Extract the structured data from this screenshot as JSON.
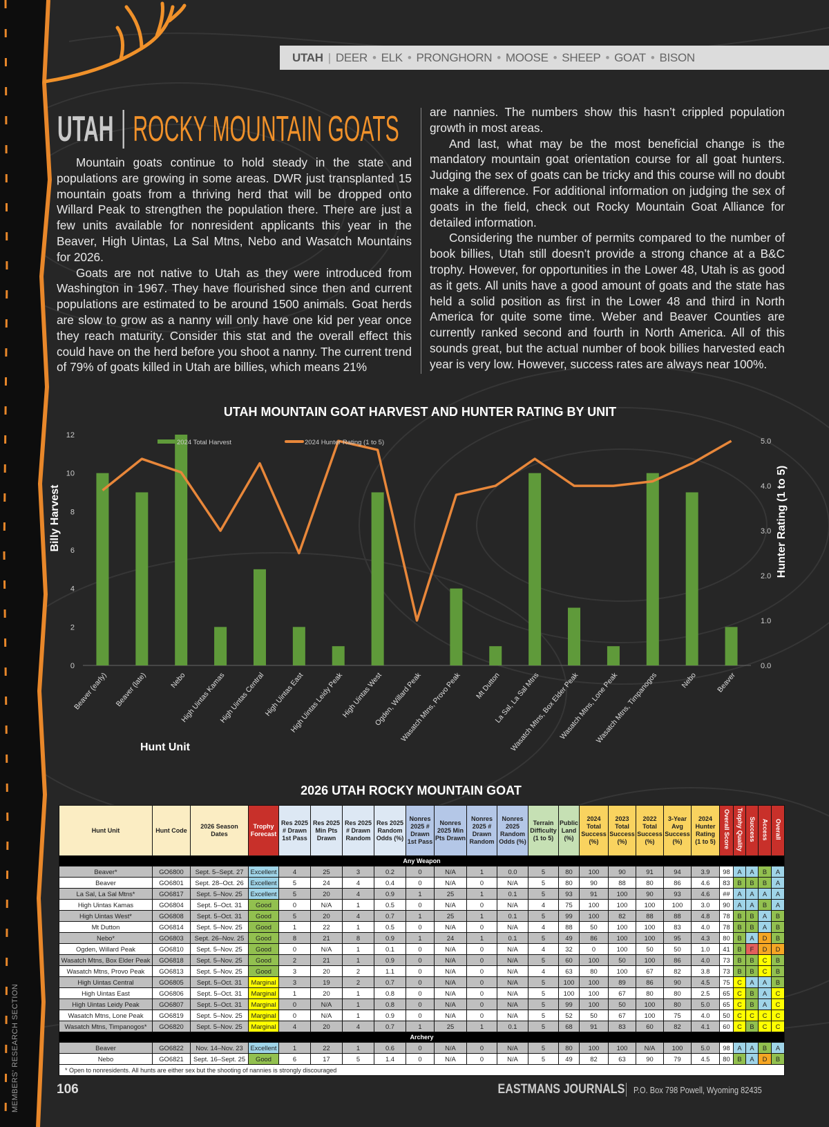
{
  "nav": {
    "current": "UTAH",
    "items": [
      "DEER",
      "ELK",
      "PRONGHORN",
      "MOOSE",
      "SHEEP",
      "GOAT",
      "BISON"
    ]
  },
  "title": {
    "state": "UTAH",
    "species": "ROCKY MOUNTAIN GOATS"
  },
  "article": {
    "left": [
      "Mountain goats continue to hold steady in the state and populations are growing in some areas. DWR just transplanted 15 mountain goats from a thriving herd that will be dropped onto Willard Peak to strengthen the population there. There are just a few units available for nonresident applicants this year in the Beaver, High Uintas, La Sal Mtns, Nebo and Wasatch Mountains for 2026.",
      "Goats are not native to Utah as they were introduced from Washington in 1967. They have flourished since then and current populations are estimated to be around 1500 animals. Goat herds are slow to grow as a nanny will only have one kid per year once they reach maturity. Consider this stat and the overall effect this could have on the herd before you shoot a nanny. The current trend of 79% of goats killed in Utah are billies, which means 21%"
    ],
    "right": [
      "are nannies. The numbers show this hasn’t crippled population growth in most areas.",
      "And last, what may be the most beneficial change is the mandatory mountain goat orientation course for all goat hunters. Judging the sex of goats can be tricky and this course will no doubt make a difference. For additional information on judging the sex of goats in the field, check out Rocky Mountain Goat Alliance for detailed information.",
      "Considering the number of permits compared to the number of book billies, Utah still doesn’t provide a strong chance at a B&C trophy. However, for opportunities in the Lower 48, Utah is as good as it gets. All units have a good amount of goats and the state has held a solid position as first in the Lower 48 and third in North America for quite some time. Weber and Beaver Counties are currently ranked second and fourth in North America. All of this sounds great, but the actual number of book billies harvested each year is very low. However, success rates are always near 100%."
    ]
  },
  "chart_data": {
    "type": "bar+line",
    "title": "UTAH MOUNTAIN GOAT HARVEST AND HUNTER RATING BY UNIT",
    "xlabel": "Hunt Unit",
    "ylabel": "Billy Harvest",
    "y2label": "Hunter Rating (1 to 5)",
    "ylim": [
      0,
      12
    ],
    "yticks": [
      "0",
      "2",
      "4",
      "6",
      "8",
      "10",
      "12"
    ],
    "y2lim": [
      0,
      5
    ],
    "y2ticks": [
      "0.0",
      "1.0",
      "2.0",
      "3.0",
      "4.0",
      "5.0"
    ],
    "legend_position": "top",
    "categories": [
      "Beaver (early)",
      "Beaver (late)",
      "Nebo",
      "High Uintas Kamas",
      "High Uintas Central",
      "High Uintas East",
      "High Uintas Leidy Peak",
      "High Uintas West",
      "Ogden, Willard Peak",
      "Wasatch Mtns, Provo Peak",
      "Mt Dutton",
      "La Sal, La Sal Mtns",
      "Wasatch Mtns, Box Elder Peak",
      "Wasatch Mtns, Lone Peak",
      "Wasatch Mtns, Timpanogos",
      "Nebo",
      "Beaver"
    ],
    "series": [
      {
        "name": "2024 Total Harvest",
        "type": "bar",
        "color": "#5f9a3a",
        "values": [
          10,
          9,
          12,
          2,
          5,
          2,
          1,
          9,
          0,
          4,
          1,
          10,
          3,
          1,
          10,
          9,
          2
        ]
      },
      {
        "name": "2024 Hunter Rating (1 to 5)",
        "type": "line",
        "axis": "right",
        "color": "#e8873a",
        "values": [
          3.9,
          4.6,
          4.3,
          3.0,
          4.5,
          2.5,
          5.0,
          4.8,
          1.0,
          3.8,
          4.0,
          4.6,
          4.0,
          4.0,
          4.1,
          4.5,
          5.0
        ]
      }
    ]
  },
  "table": {
    "title": "2026 UTAH ROCKY MOUNTAIN GOAT",
    "headers": [
      "Hunt Unit",
      "Hunt Code",
      "2026 Season Dates",
      "Trophy Forecast",
      "Res 2025 # Drawn 1st Pass",
      "Res 2025 Min Pts Drawn",
      "Res 2025 # Drawn Random",
      "Res 2025 Random Odds (%)",
      "Nonres 2025 # Drawn 1st Pass",
      "Nonres 2025 Min Pts Drawn",
      "Nonres 2025 # Drawn Random",
      "Nonres 2025 Random Odds (%)",
      "Terrain Difficulty (1 to 5)",
      "Public Land (%)",
      "2024 Total Success (%)",
      "2023 Total Success (%)",
      "2022 Total Success (%)",
      "3-Year Avg Success (%)",
      "2024 Hunter Rating (1 to 5)",
      "Overall Score",
      "Trophy Quality",
      "Success",
      "Access",
      "Overall"
    ],
    "sections": [
      {
        "label": "Any Weapon",
        "rows": [
          [
            "Beaver*",
            "GO6800",
            "Sept. 5–Sept. 27",
            "Excellent",
            "4",
            "25",
            "3",
            "0.2",
            "0",
            "N/A",
            "1",
            "0.0",
            "5",
            "80",
            "100",
            "90",
            "91",
            "94",
            "3.9",
            "98",
            "A",
            "A",
            "B",
            "A"
          ],
          [
            "Beaver",
            "GO6801",
            "Sept. 28–Oct. 26",
            "Excellent",
            "5",
            "24",
            "4",
            "0.4",
            "0",
            "N/A",
            "0",
            "N/A",
            "5",
            "80",
            "90",
            "88",
            "80",
            "86",
            "4.6",
            "83",
            "B",
            "B",
            "B",
            "A"
          ],
          [
            "La Sal, La Sal Mtns*",
            "GO6817",
            "Sept. 5–Nov. 25",
            "Excellent",
            "5",
            "20",
            "4",
            "0.9",
            "1",
            "25",
            "1",
            "0.1",
            "5",
            "93",
            "91",
            "100",
            "90",
            "93",
            "4.6",
            "##",
            "A",
            "A",
            "A",
            "A"
          ],
          [
            "High Uintas Kamas",
            "GO6804",
            "Sept. 5–Oct. 31",
            "Good",
            "0",
            "N/A",
            "1",
            "0.5",
            "0",
            "N/A",
            "0",
            "N/A",
            "4",
            "75",
            "100",
            "100",
            "100",
            "100",
            "3.0",
            "90",
            "A",
            "A",
            "B",
            "A"
          ],
          [
            "High Uintas West*",
            "GO6808",
            "Sept. 5–Oct. 31",
            "Good",
            "5",
            "20",
            "4",
            "0.7",
            "1",
            "25",
            "1",
            "0.1",
            "5",
            "99",
            "100",
            "82",
            "88",
            "88",
            "4.8",
            "78",
            "B",
            "B",
            "A",
            "B"
          ],
          [
            "Mt Dutton",
            "GO6814",
            "Sept. 5–Nov. 25",
            "Good",
            "1",
            "22",
            "1",
            "0.5",
            "0",
            "N/A",
            "0",
            "N/A",
            "4",
            "88",
            "50",
            "100",
            "100",
            "83",
            "4.0",
            "78",
            "B",
            "B",
            "A",
            "B"
          ],
          [
            "Nebo*",
            "GO6803",
            "Sept. 26–Nov. 25",
            "Good",
            "8",
            "21",
            "8",
            "0.9",
            "1",
            "24",
            "1",
            "0.1",
            "5",
            "49",
            "86",
            "100",
            "100",
            "95",
            "4.3",
            "80",
            "B",
            "A",
            "D",
            "B"
          ],
          [
            "Ogden, Willard Peak",
            "GO6810",
            "Sept. 5–Nov. 25",
            "Good",
            "0",
            "N/A",
            "1",
            "0.1",
            "0",
            "N/A",
            "0",
            "N/A",
            "4",
            "32",
            "0",
            "100",
            "50",
            "50",
            "1.0",
            "41",
            "B",
            "F",
            "D",
            "D"
          ],
          [
            "Wasatch Mtns, Box Elder Peak",
            "GO6818",
            "Sept. 5–Nov. 25",
            "Good",
            "2",
            "21",
            "1",
            "0.9",
            "0",
            "N/A",
            "0",
            "N/A",
            "5",
            "60",
            "100",
            "50",
            "100",
            "86",
            "4.0",
            "73",
            "B",
            "B",
            "C",
            "B"
          ],
          [
            "Wasatch Mtns, Provo Peak",
            "GO6813",
            "Sept. 5–Nov. 25",
            "Good",
            "3",
            "20",
            "2",
            "1.1",
            "0",
            "N/A",
            "0",
            "N/A",
            "4",
            "63",
            "80",
            "100",
            "67",
            "82",
            "3.8",
            "73",
            "B",
            "B",
            "C",
            "B"
          ],
          [
            "High Uintas Central",
            "GO6805",
            "Sept. 5–Oct. 31",
            "Marginal",
            "3",
            "19",
            "2",
            "0.7",
            "0",
            "N/A",
            "0",
            "N/A",
            "5",
            "100",
            "100",
            "89",
            "86",
            "90",
            "4.5",
            "75",
            "C",
            "A",
            "A",
            "B"
          ],
          [
            "High Uintas East",
            "GO6806",
            "Sept. 5–Oct. 31",
            "Marginal",
            "1",
            "20",
            "1",
            "0.8",
            "0",
            "N/A",
            "0",
            "N/A",
            "5",
            "100",
            "100",
            "67",
            "80",
            "80",
            "2.5",
            "65",
            "C",
            "B",
            "A",
            "C"
          ],
          [
            "High Uintas Leidy Peak",
            "GO6807",
            "Sept. 5–Oct. 31",
            "Marginal",
            "0",
            "N/A",
            "1",
            "0.8",
            "0",
            "N/A",
            "0",
            "N/A",
            "5",
            "99",
            "100",
            "50",
            "100",
            "80",
            "5.0",
            "65",
            "C",
            "B",
            "A",
            "C"
          ],
          [
            "Wasatch Mtns, Lone Peak",
            "GO6819",
            "Sept. 5–Nov. 25",
            "Marginal",
            "0",
            "N/A",
            "1",
            "0.9",
            "0",
            "N/A",
            "0",
            "N/A",
            "5",
            "52",
            "50",
            "67",
            "100",
            "75",
            "4.0",
            "50",
            "C",
            "C",
            "C",
            "C"
          ],
          [
            "Wasatch Mtns, Timpanogos*",
            "GO6820",
            "Sept. 5–Nov. 25",
            "Marginal",
            "4",
            "20",
            "4",
            "0.7",
            "1",
            "25",
            "1",
            "0.1",
            "5",
            "68",
            "91",
            "83",
            "60",
            "82",
            "4.1",
            "60",
            "C",
            "B",
            "C",
            "C"
          ]
        ]
      },
      {
        "label": "Archery",
        "rows": [
          [
            "Beaver",
            "GO6822",
            "Nov. 14–Nov. 23",
            "Excellent",
            "1",
            "22",
            "1",
            "0.6",
            "0",
            "N/A",
            "0",
            "N/A",
            "5",
            "80",
            "100",
            "100",
            "N/A",
            "100",
            "5.0",
            "98",
            "A",
            "A",
            "B",
            "A"
          ],
          [
            "Nebo",
            "GO6821",
            "Sept. 16–Sept. 25",
            "Good",
            "6",
            "17",
            "5",
            "1.4",
            "0",
            "N/A",
            "0",
            "N/A",
            "5",
            "49",
            "82",
            "63",
            "90",
            "79",
            "4.5",
            "80",
            "B",
            "A",
            "D",
            "B"
          ]
        ]
      }
    ],
    "footnote": "* Open to nonresidents.    All hunts are either sex but the shooting of nannies is strongly discouraged",
    "forecast_colors": {
      "Excellent": "#9fd4e8",
      "Good": "#92c04f",
      "Marginal": "#ffff00"
    },
    "grade_colors": {
      "A": "#9fd4e8",
      "B": "#92c04f",
      "C": "#ffff00",
      "D": "#f5a623",
      "F": "#e35f5c"
    }
  },
  "footer": {
    "page": "106",
    "journal": "EASTMANS JOURNALS",
    "address": "P.O. Box 798 Powell, Wyoming 82435",
    "section": "MEMBERS' RESEARCH SECTION"
  }
}
